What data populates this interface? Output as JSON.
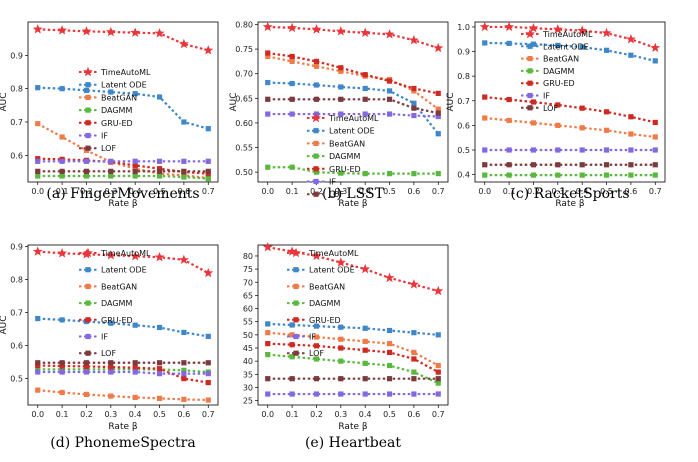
{
  "colors": {
    "TimeAutoML": "#e8363a",
    "Latent ODE": "#3f87c8",
    "BeatGAN": "#ef7b4a",
    "DAGMM": "#59b83e",
    "GRU-ED": "#cf2a22",
    "IF": "#8468e0",
    "LOF": "#7c3a3e"
  },
  "chart_data": [
    {
      "type": "line",
      "caption": "(a) FingerMovements",
      "xlabel": "Rate β",
      "ylabel": "AUC",
      "x": [
        0.0,
        0.1,
        0.2,
        0.3,
        0.4,
        0.5,
        0.6,
        0.7
      ],
      "xticks": [
        "0.0",
        "0.1",
        "0.2",
        "0.3",
        "0.4",
        "0.5",
        "0.6",
        "0.7"
      ],
      "ylim": [
        0.52,
        1.0
      ],
      "yticks": [
        "0.6",
        "0.7",
        "0.8",
        "0.9"
      ],
      "ytick_values": [
        0.6,
        0.7,
        0.8,
        0.9
      ],
      "legend": "center-right",
      "series": [
        {
          "name": "TimeAutoML",
          "values": [
            0.978,
            0.975,
            0.972,
            0.97,
            0.968,
            0.966,
            0.934,
            0.915
          ]
        },
        {
          "name": "Latent ODE",
          "values": [
            0.803,
            0.8,
            0.795,
            0.79,
            0.785,
            0.775,
            0.7,
            0.68
          ]
        },
        {
          "name": "BeatGAN",
          "values": [
            0.695,
            0.655,
            0.615,
            0.58,
            0.56,
            0.545,
            0.54,
            0.532
          ]
        },
        {
          "name": "DAGMM",
          "values": [
            0.538,
            0.538,
            0.538,
            0.538,
            0.538,
            0.538,
            0.535,
            0.53
          ]
        },
        {
          "name": "GRU-ED",
          "values": [
            0.59,
            0.588,
            0.585,
            0.58,
            0.57,
            0.56,
            0.55,
            0.545
          ]
        },
        {
          "name": "IF",
          "values": [
            0.582,
            0.582,
            0.582,
            0.582,
            0.582,
            0.582,
            0.582,
            0.582
          ]
        },
        {
          "name": "LOF",
          "values": [
            0.552,
            0.552,
            0.552,
            0.552,
            0.552,
            0.552,
            0.552,
            0.552
          ]
        }
      ]
    },
    {
      "type": "line",
      "caption": "(b) LSST",
      "xlabel": "Rate β",
      "ylabel": "AUC",
      "x": [
        0.0,
        0.1,
        0.2,
        0.3,
        0.4,
        0.5,
        0.6,
        0.7
      ],
      "xticks": [
        "0.0",
        "0.1",
        "0.2",
        "0.3",
        "0.4",
        "0.5",
        "0.6",
        "0.7"
      ],
      "ylim": [
        0.48,
        0.805
      ],
      "yticks": [
        "0.50",
        "0.55",
        "0.60",
        "0.65",
        "0.70",
        "0.75",
        "0.80"
      ],
      "ytick_values": [
        0.5,
        0.55,
        0.6,
        0.65,
        0.7,
        0.75,
        0.8
      ],
      "legend": "bottom-left",
      "series": [
        {
          "name": "TimeAutoML",
          "values": [
            0.795,
            0.793,
            0.79,
            0.786,
            0.783,
            0.78,
            0.768,
            0.752
          ]
        },
        {
          "name": "Latent ODE",
          "values": [
            0.682,
            0.68,
            0.677,
            0.673,
            0.67,
            0.665,
            0.64,
            0.578
          ]
        },
        {
          "name": "BeatGAN",
          "values": [
            0.735,
            0.725,
            0.715,
            0.705,
            0.695,
            0.688,
            0.665,
            0.628
          ]
        },
        {
          "name": "DAGMM",
          "values": [
            0.51,
            0.51,
            0.5,
            0.498,
            0.497,
            0.497,
            0.497,
            0.497
          ]
        },
        {
          "name": "GRU-ED",
          "values": [
            0.742,
            0.735,
            0.725,
            0.712,
            0.698,
            0.685,
            0.67,
            0.66
          ]
        },
        {
          "name": "IF",
          "values": [
            0.618,
            0.618,
            0.618,
            0.618,
            0.618,
            0.618,
            0.615,
            0.613
          ]
        },
        {
          "name": "LOF",
          "values": [
            0.648,
            0.648,
            0.648,
            0.648,
            0.648,
            0.648,
            0.63,
            0.62
          ]
        }
      ]
    },
    {
      "type": "line",
      "caption": "(c) RacketSports",
      "xlabel": "Rate β",
      "ylabel": "AUC",
      "x": [
        0.0,
        0.1,
        0.2,
        0.3,
        0.4,
        0.5,
        0.6,
        0.7
      ],
      "xticks": [
        "0.0",
        "0.1",
        "0.2",
        "0.3",
        "0.4",
        "0.5",
        "0.6",
        "0.7"
      ],
      "ylim": [
        0.37,
        1.02
      ],
      "yticks": [
        "0.4",
        "0.5",
        "0.6",
        "0.7",
        "0.8",
        "0.9",
        "1.0"
      ],
      "ytick_values": [
        0.4,
        0.5,
        0.6,
        0.7,
        0.8,
        0.9,
        1.0
      ],
      "legend": "top-right",
      "series": [
        {
          "name": "TimeAutoML",
          "values": [
            1.0,
            1.0,
            0.995,
            0.99,
            0.985,
            0.975,
            0.95,
            0.915
          ]
        },
        {
          "name": "Latent ODE",
          "values": [
            0.935,
            0.933,
            0.93,
            0.925,
            0.918,
            0.905,
            0.885,
            0.862
          ]
        },
        {
          "name": "BeatGAN",
          "values": [
            0.63,
            0.62,
            0.61,
            0.6,
            0.59,
            0.58,
            0.565,
            0.553
          ]
        },
        {
          "name": "DAGMM",
          "values": [
            0.398,
            0.398,
            0.398,
            0.398,
            0.398,
            0.398,
            0.398,
            0.398
          ]
        },
        {
          "name": "GRU-ED",
          "values": [
            0.715,
            0.705,
            0.695,
            0.683,
            0.67,
            0.655,
            0.635,
            0.612
          ]
        },
        {
          "name": "IF",
          "values": [
            0.5,
            0.5,
            0.5,
            0.5,
            0.5,
            0.5,
            0.5,
            0.5
          ]
        },
        {
          "name": "LOF",
          "values": [
            0.44,
            0.44,
            0.44,
            0.44,
            0.44,
            0.44,
            0.44,
            0.44
          ]
        }
      ]
    },
    {
      "type": "line",
      "caption": "(d) PhonemeSpectra",
      "xlabel": "Rate β",
      "ylabel": "AUC",
      "x": [
        0.0,
        0.1,
        0.2,
        0.3,
        0.4,
        0.5,
        0.6,
        0.7
      ],
      "xticks": [
        "0.0",
        "0.1",
        "0.2",
        "0.3",
        "0.4",
        "0.5",
        "0.6",
        "0.7"
      ],
      "ylim": [
        0.42,
        0.905
      ],
      "yticks": [
        "0.5",
        "0.6",
        "0.7",
        "0.8",
        "0.9"
      ],
      "ytick_values": [
        0.5,
        0.6,
        0.7,
        0.8,
        0.9
      ],
      "legend": "top-right",
      "series": [
        {
          "name": "TimeAutoML",
          "values": [
            0.885,
            0.88,
            0.877,
            0.874,
            0.871,
            0.868,
            0.86,
            0.82
          ]
        },
        {
          "name": "Latent ODE",
          "values": [
            0.682,
            0.678,
            0.673,
            0.668,
            0.662,
            0.655,
            0.64,
            0.628
          ]
        },
        {
          "name": "BeatGAN",
          "values": [
            0.465,
            0.458,
            0.452,
            0.447,
            0.443,
            0.44,
            0.437,
            0.435
          ]
        },
        {
          "name": "DAGMM",
          "values": [
            0.528,
            0.528,
            0.528,
            0.528,
            0.528,
            0.528,
            0.525,
            0.52
          ]
        },
        {
          "name": "GRU-ED",
          "values": [
            0.54,
            0.538,
            0.537,
            0.535,
            0.533,
            0.53,
            0.5,
            0.488
          ]
        },
        {
          "name": "IF",
          "values": [
            0.52,
            0.52,
            0.52,
            0.52,
            0.52,
            0.515,
            0.515,
            0.515
          ]
        },
        {
          "name": "LOF",
          "values": [
            0.548,
            0.548,
            0.548,
            0.548,
            0.548,
            0.548,
            0.548,
            0.548
          ]
        }
      ]
    },
    {
      "type": "line",
      "caption": "(e) Heartbeat",
      "xlabel": "Rate β",
      "ylabel": "",
      "x": [
        0.0,
        0.1,
        0.2,
        0.3,
        0.4,
        0.5,
        0.6,
        0.7
      ],
      "xticks": [
        "0.0",
        "0.1",
        "0.2",
        "0.3",
        "0.4",
        "0.5",
        "0.6",
        "0.7"
      ],
      "ylim": [
        0.015,
        0.088
      ],
      "yticks": [
        "25",
        "30",
        "35",
        "40",
        "45",
        "50",
        "55",
        "60",
        "65",
        "70",
        "75",
        "80"
      ],
      "ytick_values": [
        0.017,
        0.023,
        0.029,
        0.035,
        0.041,
        0.047,
        0.053,
        0.059,
        0.065,
        0.071,
        0.077,
        0.083
      ],
      "legend": "top-right",
      "series": [
        {
          "name": "TimeAutoML",
          "values": [
            0.087,
            0.085,
            0.083,
            0.08,
            0.077,
            0.073,
            0.07,
            0.067
          ]
        },
        {
          "name": "Latent ODE",
          "values": [
            0.052,
            0.0515,
            0.051,
            0.0505,
            0.05,
            0.049,
            0.048,
            0.047
          ]
        },
        {
          "name": "BeatGAN",
          "values": [
            0.048,
            0.047,
            0.046,
            0.045,
            0.044,
            0.043,
            0.039,
            0.033
          ]
        },
        {
          "name": "DAGMM",
          "values": [
            0.038,
            0.037,
            0.036,
            0.035,
            0.034,
            0.033,
            0.03,
            0.025
          ]
        },
        {
          "name": "GRU-ED",
          "values": [
            0.043,
            0.0425,
            0.042,
            0.041,
            0.04,
            0.039,
            0.036,
            0.03
          ]
        },
        {
          "name": "IF",
          "values": [
            0.02,
            0.02,
            0.02,
            0.02,
            0.02,
            0.02,
            0.02,
            0.02
          ]
        },
        {
          "name": "LOF",
          "values": [
            0.027,
            0.027,
            0.027,
            0.027,
            0.027,
            0.027,
            0.027,
            0.027
          ]
        }
      ]
    }
  ]
}
